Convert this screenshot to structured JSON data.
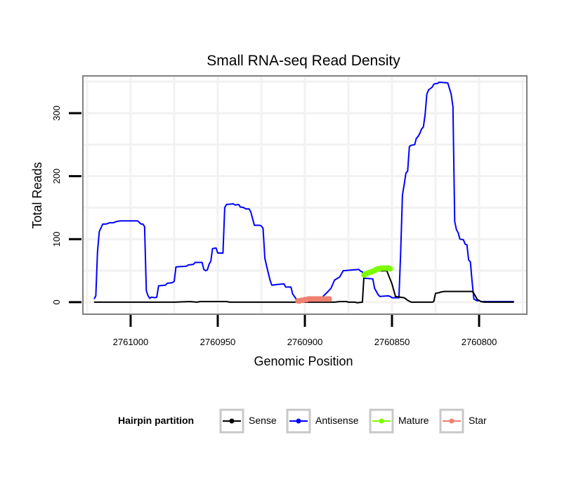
{
  "chart_data": {
    "type": "line",
    "title": "Small RNA-seq Read Density",
    "xlabel": "Genomic Position",
    "ylabel": "Total Reads",
    "x_reversed": true,
    "xlim": [
      2761027,
      2760773
    ],
    "ylim": [
      -18,
      358
    ],
    "x_ticks": [
      2761000,
      2760950,
      2760900,
      2760850,
      2760800
    ],
    "x_tick_labels": [
      "2761000",
      "2760950",
      "2760900",
      "2760850",
      "2760800"
    ],
    "y_ticks": [
      0,
      100,
      200,
      300
    ],
    "y_tick_labels": [
      "0",
      "100",
      "200",
      "300"
    ],
    "grid": true,
    "legend": {
      "title": "Hairpin partition",
      "position": "bottom",
      "entries": [
        {
          "label": "Sense",
          "color": "#000000"
        },
        {
          "label": "Antisense",
          "color": "#0000ff"
        },
        {
          "label": "Mature",
          "color": "#7cfc00"
        },
        {
          "label": "Star",
          "color": "#f08070"
        }
      ]
    },
    "series": [
      {
        "name": "Antisense",
        "color": "#0000ff",
        "style": "line",
        "points": [
          [
            2761021,
            5
          ],
          [
            2761020,
            10
          ],
          [
            2761019,
            80
          ],
          [
            2761018,
            112
          ],
          [
            2761016,
            124
          ],
          [
            2761014,
            124
          ],
          [
            2761012,
            126
          ],
          [
            2761010,
            126
          ],
          [
            2761008,
            128
          ],
          [
            2761006,
            129
          ],
          [
            2760996,
            129
          ],
          [
            2760994,
            124
          ],
          [
            2760993,
            124
          ],
          [
            2760992,
            120
          ],
          [
            2760991,
            18
          ],
          [
            2760990,
            10
          ],
          [
            2760989,
            6
          ],
          [
            2760988,
            8
          ],
          [
            2760986,
            7
          ],
          [
            2760985,
            8
          ],
          [
            2760984,
            26
          ],
          [
            2760980,
            27
          ],
          [
            2760979,
            30
          ],
          [
            2760976,
            31
          ],
          [
            2760975,
            33
          ],
          [
            2760974,
            56
          ],
          [
            2760968,
            57
          ],
          [
            2760967,
            59
          ],
          [
            2760964,
            60
          ],
          [
            2760963,
            63
          ],
          [
            2760959,
            63
          ],
          [
            2760958,
            52
          ],
          [
            2760957,
            50
          ],
          [
            2760956,
            51
          ],
          [
            2760955,
            60
          ],
          [
            2760954,
            65
          ],
          [
            2760953,
            85
          ],
          [
            2760951,
            86
          ],
          [
            2760950,
            78
          ],
          [
            2760947,
            78
          ],
          [
            2760946,
            150
          ],
          [
            2760945,
            155
          ],
          [
            2760941,
            156
          ],
          [
            2760940,
            154
          ],
          [
            2760938,
            155
          ],
          [
            2760937,
            151
          ],
          [
            2760935,
            150
          ],
          [
            2760934,
            148
          ],
          [
            2760932,
            148
          ],
          [
            2760931,
            143
          ],
          [
            2760929,
            122
          ],
          [
            2760926,
            122
          ],
          [
            2760925,
            121
          ],
          [
            2760924,
            117
          ],
          [
            2760923,
            70
          ],
          [
            2760922,
            58
          ],
          [
            2760920,
            35
          ],
          [
            2760919,
            27
          ],
          [
            2760916,
            28
          ],
          [
            2760912,
            29
          ],
          [
            2760911,
            24
          ],
          [
            2760908,
            24
          ],
          [
            2760907,
            13
          ],
          [
            2760906,
            9
          ],
          [
            2760905,
            5
          ],
          [
            2760895,
            5
          ],
          [
            2760890,
            8
          ],
          [
            2760887,
            16
          ],
          [
            2760885,
            22
          ],
          [
            2760883,
            35
          ],
          [
            2760880,
            40
          ],
          [
            2760878,
            50
          ],
          [
            2760869,
            52
          ],
          [
            2760868,
            49
          ],
          [
            2760867,
            48
          ],
          [
            2760866,
            38
          ],
          [
            2760861,
            37
          ],
          [
            2760860,
            22
          ],
          [
            2760859,
            17
          ],
          [
            2760858,
            12
          ],
          [
            2760857,
            9
          ],
          [
            2760852,
            10
          ],
          [
            2760851,
            9
          ],
          [
            2760850,
            7
          ],
          [
            2760846,
            7
          ],
          [
            2760845,
            80
          ],
          [
            2760844,
            170
          ],
          [
            2760843,
            187
          ],
          [
            2760842,
            205
          ],
          [
            2760841,
            208
          ],
          [
            2760840,
            247
          ],
          [
            2760839,
            249
          ],
          [
            2760837,
            250
          ],
          [
            2760836,
            260
          ],
          [
            2760835,
            263
          ],
          [
            2760834,
            268
          ],
          [
            2760833,
            275
          ],
          [
            2760832,
            278
          ],
          [
            2760831,
            297
          ],
          [
            2760830,
            330
          ],
          [
            2760829,
            337
          ],
          [
            2760828,
            339
          ],
          [
            2760827,
            341
          ],
          [
            2760826,
            346
          ],
          [
            2760825,
            347
          ],
          [
            2760824,
            347
          ],
          [
            2760823,
            349
          ],
          [
            2760822,
            349
          ],
          [
            2760818,
            348
          ],
          [
            2760816,
            330
          ],
          [
            2760815,
            310
          ],
          [
            2760814,
            128
          ],
          [
            2760813,
            115
          ],
          [
            2760812,
            110
          ],
          [
            2760811,
            100
          ],
          [
            2760809,
            99
          ],
          [
            2760808,
            92
          ],
          [
            2760807,
            91
          ],
          [
            2760806,
            67
          ],
          [
            2760805,
            64
          ],
          [
            2760804,
            32
          ],
          [
            2760803,
            5
          ],
          [
            2760801,
            2
          ],
          [
            2760800,
            3
          ],
          [
            2760799,
            1
          ],
          [
            2760780,
            1
          ]
        ]
      },
      {
        "name": "Sense",
        "color": "#000000",
        "style": "line",
        "points": [
          [
            2761021,
            0
          ],
          [
            2760975,
            0
          ],
          [
            2760966,
            1
          ],
          [
            2760962,
            0
          ],
          [
            2760960,
            1
          ],
          [
            2760945,
            1
          ],
          [
            2760943,
            0
          ],
          [
            2760883,
            0
          ],
          [
            2760880,
            1
          ],
          [
            2760876,
            1
          ],
          [
            2760875,
            0
          ],
          [
            2760871,
            0
          ],
          [
            2760870,
            -1
          ],
          [
            2760867,
            0
          ],
          [
            2760866,
            45
          ],
          [
            2760865,
            45
          ],
          [
            2760864,
            47
          ],
          [
            2760863,
            49
          ],
          [
            2760853,
            50
          ],
          [
            2760850,
            29
          ],
          [
            2760848,
            9
          ],
          [
            2760843,
            7
          ],
          [
            2760841,
            3
          ],
          [
            2760839,
            0
          ],
          [
            2760827,
            0
          ],
          [
            2760826,
            1
          ],
          [
            2760825,
            14
          ],
          [
            2760823,
            15
          ],
          [
            2760822,
            16
          ],
          [
            2760820,
            17
          ],
          [
            2760812,
            17
          ],
          [
            2760810,
            17
          ],
          [
            2760804,
            17
          ],
          [
            2760803,
            14
          ],
          [
            2760801,
            4
          ],
          [
            2760799,
            1
          ],
          [
            2760797,
            0
          ],
          [
            2760780,
            0
          ]
        ]
      },
      {
        "name": "Mature",
        "color": "#7cfc00",
        "style": "dots",
        "points": [
          [
            2760866,
            43
          ],
          [
            2760865,
            45
          ],
          [
            2760864,
            46
          ],
          [
            2760863,
            47
          ],
          [
            2760862,
            48
          ],
          [
            2760861,
            49
          ],
          [
            2760860,
            50
          ],
          [
            2760859,
            52
          ],
          [
            2760858,
            53
          ],
          [
            2760857,
            53
          ],
          [
            2760856,
            54
          ],
          [
            2760855,
            54
          ],
          [
            2760854,
            54
          ],
          [
            2760853,
            54
          ],
          [
            2760852,
            54
          ],
          [
            2760851,
            53
          ]
        ]
      },
      {
        "name": "Star",
        "color": "#f08070",
        "style": "dots",
        "points": [
          [
            2760904,
            2
          ],
          [
            2760903,
            2
          ],
          [
            2760902,
            3
          ],
          [
            2760901,
            3
          ],
          [
            2760900,
            4
          ],
          [
            2760899,
            4
          ],
          [
            2760898,
            5
          ],
          [
            2760897,
            5
          ],
          [
            2760896,
            5
          ],
          [
            2760895,
            5
          ],
          [
            2760894,
            5
          ],
          [
            2760893,
            5
          ],
          [
            2760892,
            5
          ],
          [
            2760891,
            5
          ],
          [
            2760890,
            5
          ],
          [
            2760889,
            5
          ],
          [
            2760888,
            5
          ],
          [
            2760887,
            5
          ],
          [
            2760886,
            5
          ]
        ]
      }
    ]
  }
}
